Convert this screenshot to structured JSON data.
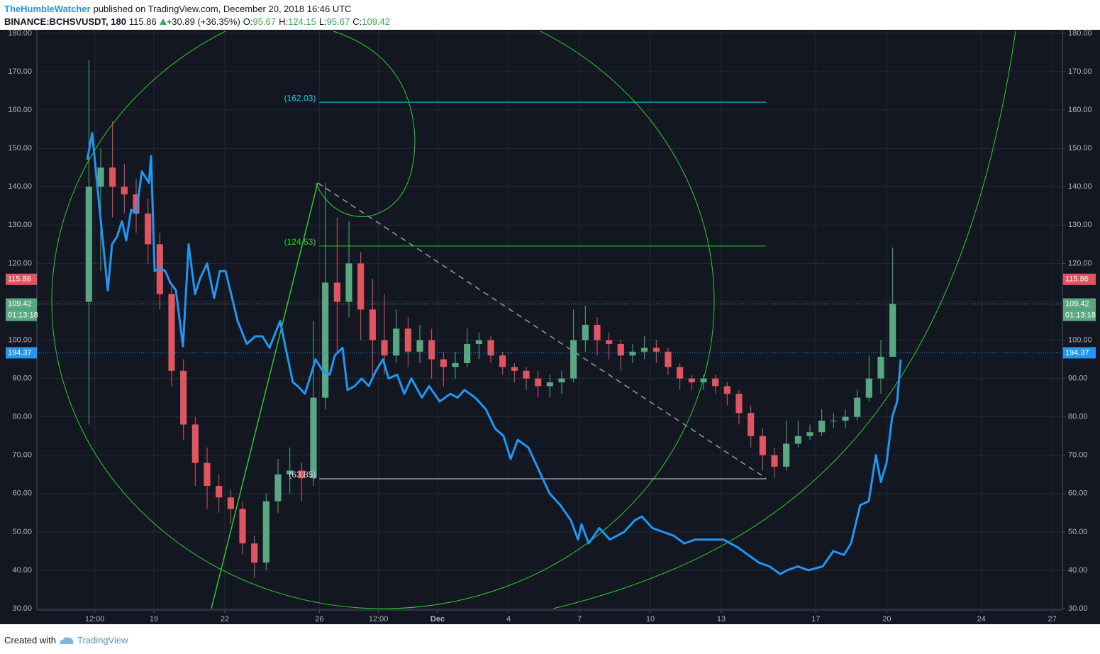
{
  "header": {
    "author": "TheHumbleWatcher",
    "published": "published on TradingView.com, December 20, 2018 16:46 UTC",
    "symbol": "BINANCE:BCHSVUSDT, 180",
    "price": "115.86",
    "change": "+30.89 (+36.35%)",
    "ohlc": [
      {
        "key": "O:",
        "value": "95.67"
      },
      {
        "key": "H:",
        "value": "124.15"
      },
      {
        "key": "L:",
        "value": "95.67"
      },
      {
        "key": "C:",
        "value": "109.42"
      }
    ]
  },
  "footer": {
    "created": "Created with",
    "brand": "TradingView"
  },
  "chart_data": {
    "type": "candlestick",
    "x": [
      16.25,
      16.75,
      17.25,
      17.75,
      18.25,
      18.75,
      19.25,
      19.75,
      20.25,
      20.75,
      21.25,
      21.75,
      22.25,
      22.75,
      23.25,
      23.75,
      24.25,
      24.75,
      25.25,
      25.75,
      26.25,
      26.75,
      27.25,
      27.75,
      28.25,
      28.75,
      29.25,
      29.75,
      30.25,
      30.75,
      31.25,
      31.75,
      32.25,
      32.75,
      33.25,
      33.75,
      34.25,
      34.75,
      35.25,
      35.75,
      36.25,
      36.75,
      37.25,
      37.75,
      38.25,
      38.75,
      39.25,
      39.75,
      40.25,
      40.75,
      41.25,
      41.75,
      42.25,
      42.75,
      43.25,
      43.75,
      44.25,
      44.75,
      45.25,
      45.75,
      46.25,
      46.75,
      47.25,
      47.75,
      48.25,
      48.75,
      49.25,
      49.75,
      50.25
    ],
    "open": [
      110,
      140,
      145,
      140,
      138,
      133,
      125,
      112,
      92,
      78,
      68,
      62,
      59,
      56,
      47,
      42,
      58,
      65,
      66,
      64,
      85,
      115,
      110,
      120,
      108,
      100,
      96,
      103,
      97,
      100,
      95,
      93,
      94,
      99,
      100,
      96,
      93,
      92,
      90,
      88,
      89,
      90,
      100,
      104,
      100,
      99,
      96,
      97,
      98,
      97,
      93,
      90,
      89,
      90,
      88,
      86,
      81,
      75,
      70,
      67,
      73,
      75,
      76,
      79,
      79,
      80,
      85,
      90,
      95.67
    ],
    "high": [
      173,
      150,
      157,
      146,
      142,
      137,
      128,
      114,
      95,
      80,
      72,
      65,
      61,
      58,
      49,
      60,
      69,
      72,
      68,
      105,
      141,
      132,
      131,
      123,
      116,
      112,
      108,
      106,
      104,
      103,
      97,
      97,
      103,
      102,
      101,
      97,
      94,
      93,
      92,
      91,
      92,
      108,
      109,
      106,
      102,
      100,
      99,
      101,
      100,
      98,
      94,
      91,
      91,
      91,
      89,
      87,
      83,
      77,
      72,
      79,
      79,
      78,
      82,
      81,
      82,
      87,
      96,
      100,
      124.15
    ],
    "low": [
      78,
      118,
      132,
      133,
      128,
      120,
      108,
      88,
      74,
      62,
      56,
      55,
      52,
      44,
      38,
      40,
      55,
      60,
      58,
      62,
      82,
      97,
      106,
      100,
      90,
      91,
      94,
      93,
      94,
      90,
      88,
      90,
      93,
      95,
      94,
      91,
      89,
      87,
      85,
      85,
      86,
      89,
      97,
      96,
      95,
      92,
      94,
      95,
      94,
      91,
      87,
      87,
      87,
      86,
      83,
      78,
      72,
      66,
      64,
      66,
      72,
      74,
      75,
      77,
      77,
      79,
      84,
      86,
      95.67
    ],
    "close": [
      140,
      145,
      140,
      138,
      133,
      125,
      112,
      92,
      78,
      68,
      62,
      59,
      56,
      47,
      42,
      58,
      65,
      66,
      64,
      85,
      115,
      110,
      120,
      108,
      100,
      96,
      103,
      97,
      100,
      95,
      93,
      94,
      99,
      100,
      96,
      93,
      92,
      90,
      88,
      89,
      90,
      100,
      104,
      100,
      99,
      96,
      97,
      98,
      97,
      93,
      90,
      89,
      90,
      88,
      86,
      81,
      75,
      70,
      67,
      73,
      75,
      76,
      79,
      79,
      80,
      85,
      90,
      95.67,
      109.42
    ],
    "up_color": "#5aa881",
    "down_color": "#e0555f",
    "xlim": [
      14.05,
      57.43
    ],
    "xticks": [
      {
        "value": 16.5,
        "label": "12:00"
      },
      19,
      22,
      26,
      {
        "value": 28.5,
        "label": "12:00"
      },
      {
        "value": 31,
        "label": "Dec"
      },
      {
        "value": 34,
        "label": "4"
      },
      {
        "value": 37,
        "label": "7"
      },
      {
        "value": 40,
        "label": "10"
      },
      {
        "value": 43,
        "label": "13"
      },
      {
        "value": 47,
        "label": "17"
      },
      {
        "value": 50,
        "label": "20"
      },
      {
        "value": 54,
        "label": "24"
      },
      {
        "value": 57,
        "label": "27"
      }
    ],
    "ylim": [
      30,
      180
    ],
    "yticks": [
      {
        "value": 30,
        "label": "30.00"
      },
      {
        "value": 40,
        "label": "40.00"
      },
      {
        "value": 50,
        "label": "50.00"
      },
      {
        "value": 60,
        "label": "60.00"
      },
      {
        "value": 70,
        "label": "70.00"
      },
      {
        "value": 80,
        "label": "80.00"
      },
      {
        "value": 90,
        "label": "90.00"
      },
      {
        "value": 100,
        "label": "100.00"
      },
      {
        "value": 110,
        "label": "110.00"
      },
      {
        "value": 120,
        "label": "120.00"
      },
      {
        "value": 130,
        "label": "130.00"
      },
      {
        "value": 140,
        "label": "140.00"
      },
      {
        "value": 150,
        "label": "150.00"
      },
      {
        "value": 160,
        "label": "160.00"
      },
      {
        "value": 170,
        "label": "170.00"
      },
      {
        "value": 180,
        "label": "180.00"
      }
    ],
    "grid": true,
    "line": {
      "color": "#2196f3",
      "x": [
        16.18,
        16.39,
        16.69,
        17.05,
        17.23,
        17.44,
        17.65,
        17.83,
        18.04,
        18.25,
        18.49,
        18.79,
        18.88,
        19.03,
        19.24,
        19.48,
        19.69,
        19.93,
        20.23,
        20.47,
        20.74,
        20.95,
        21.25,
        21.55,
        21.79,
        22.03,
        22.27,
        22.54,
        22.93,
        23.29,
        23.59,
        23.89,
        24.34,
        24.64,
        24.88,
        25.09,
        25.39,
        25.69,
        25.84,
        26.14,
        26.44,
        26.65,
        26.98,
        27.19,
        27.49,
        27.79,
        28.09,
        28.39,
        28.69,
        28.93,
        29.29,
        29.59,
        29.89,
        30.34,
        30.64,
        31.09,
        31.54,
        31.84,
        32.14,
        32.59,
        33.04,
        33.43,
        33.79,
        34.09,
        34.39,
        34.84,
        35.29,
        35.74,
        36.19,
        36.64,
        36.94,
        37.09,
        37.39,
        37.84,
        38.29,
        38.89,
        39.34,
        39.64,
        40.09,
        40.54,
        40.99,
        41.44,
        41.89,
        42.49,
        43.09,
        43.69,
        44.14,
        44.59,
        45.04,
        45.49,
        45.79,
        46.24,
        46.69,
        47.29,
        47.74,
        48.19,
        48.49,
        48.88,
        49.24,
        49.54,
        49.75,
        49.99,
        50.23,
        50.44,
        50.59
      ],
      "values": [
        147,
        154,
        135,
        113,
        125,
        127,
        131,
        126,
        134,
        133,
        144,
        141,
        148,
        118,
        119,
        118,
        115,
        113,
        98.4,
        125,
        112,
        116,
        120,
        111,
        118,
        118,
        112,
        105,
        99,
        101,
        101,
        98,
        105,
        96,
        89,
        88,
        86,
        92,
        95,
        92,
        91,
        96,
        98,
        87,
        88,
        90,
        88,
        92,
        95,
        90,
        91,
        86,
        90,
        85,
        88,
        84,
        86,
        85,
        87,
        85,
        82,
        77,
        75,
        69,
        74,
        72,
        66,
        60,
        57,
        53,
        48,
        52,
        47,
        51,
        48,
        50,
        53,
        54,
        51,
        50,
        49,
        47,
        48,
        48,
        48,
        46,
        44,
        42,
        41,
        39,
        40,
        41,
        40,
        41,
        45,
        44,
        47,
        57,
        58,
        70,
        63,
        68,
        80,
        84,
        95
      ]
    },
    "levels": [
      {
        "value": 162.03,
        "label": "(162.03)",
        "color": "#26c6da",
        "x": [
          26,
          44.9
        ]
      },
      {
        "value": 124.53,
        "label": "(124.53)",
        "color": "#2ecc2e",
        "x": [
          26,
          44.9
        ]
      },
      {
        "value": 63.85,
        "label": "(63.85)",
        "color": "#d1d4dc",
        "x": [
          26,
          44.9
        ]
      }
    ],
    "trend_lines": [
      {
        "x": [
          21.43,
          25.93
        ],
        "y": [
          30,
          141
        ],
        "color": "#2ecc2e",
        "dash": false
      },
      {
        "x": [
          25.93,
          44.89
        ],
        "y": [
          141,
          64
        ],
        "color": "#9598a1",
        "dash": true
      }
    ],
    "price_tags": [
      {
        "value": 115.86,
        "label": "115.86",
        "color": "#e0555f"
      },
      {
        "value": 109.42,
        "label": "109.42",
        "color": "#5aa881",
        "countdown": "01:13:18",
        "line": true
      }
    ],
    "compare_tag": {
      "label": "194.37",
      "y": 96.7,
      "color": "#2196f3"
    }
  }
}
